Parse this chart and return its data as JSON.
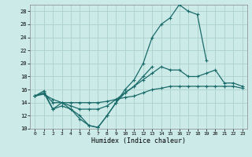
{
  "xlabel": "Humidex (Indice chaleur)",
  "bg_color": "#cceae7",
  "grid_color": "#b0d4d0",
  "line_color": "#1a6b6b",
  "xlim": [
    -0.5,
    23.5
  ],
  "ylim": [
    10,
    29
  ],
  "xticks": [
    0,
    1,
    2,
    3,
    4,
    5,
    6,
    7,
    8,
    9,
    10,
    11,
    12,
    13,
    14,
    15,
    16,
    17,
    18,
    19,
    20,
    21,
    22,
    23
  ],
  "yticks": [
    10,
    12,
    14,
    16,
    18,
    20,
    22,
    24,
    26,
    28
  ],
  "curve_top_x": [
    0,
    1,
    2,
    3,
    4,
    5,
    6,
    7,
    8,
    9,
    10,
    11,
    12,
    13,
    14,
    15,
    16,
    17,
    18,
    19,
    20,
    21,
    22,
    23
  ],
  "curve_top_y": [
    15.0,
    15.8,
    13.0,
    14.0,
    13.0,
    12.0,
    10.5,
    10.2,
    12.0,
    14.0,
    16.0,
    17.5,
    20.0,
    24.0,
    26.0,
    27.0,
    29.0,
    28.0,
    27.5,
    20.5,
    null,
    null,
    null,
    null
  ],
  "curve_mid1_x": [
    0,
    1,
    2,
    3,
    4,
    5,
    6,
    7,
    8,
    9,
    10,
    11,
    12,
    13,
    14,
    15,
    16,
    17,
    18,
    19,
    20,
    21,
    22,
    23
  ],
  "curve_mid1_y": [
    15.0,
    15.5,
    13.0,
    13.5,
    13.0,
    11.5,
    10.5,
    10.2,
    12.0,
    14.0,
    15.5,
    16.5,
    18.0,
    19.5,
    null,
    null,
    null,
    null,
    null,
    null,
    null,
    null,
    null,
    null
  ],
  "curve_mid2_x": [
    0,
    1,
    2,
    3,
    4,
    5,
    6,
    7,
    8,
    9,
    10,
    11,
    12,
    13,
    14,
    15,
    16,
    17,
    18,
    19,
    20,
    21,
    22,
    23
  ],
  "curve_mid2_y": [
    15.0,
    15.5,
    14.0,
    14.0,
    13.5,
    13.0,
    13.0,
    13.0,
    13.5,
    14.5,
    15.5,
    16.5,
    17.5,
    18.5,
    19.5,
    19.0,
    19.0,
    18.0,
    18.0,
    18.5,
    19.0,
    17.0,
    17.0,
    16.5
  ],
  "curve_low_x": [
    0,
    1,
    2,
    3,
    4,
    5,
    6,
    7,
    8,
    9,
    10,
    11,
    12,
    13,
    14,
    15,
    16,
    17,
    18,
    19,
    20,
    21,
    22,
    23
  ],
  "curve_low_y": [
    15.0,
    15.3,
    14.5,
    14.0,
    14.0,
    14.0,
    14.0,
    14.0,
    14.2,
    14.5,
    14.8,
    15.0,
    15.5,
    16.0,
    16.2,
    16.5,
    16.5,
    16.5,
    16.5,
    16.5,
    16.5,
    16.5,
    16.5,
    16.2
  ]
}
